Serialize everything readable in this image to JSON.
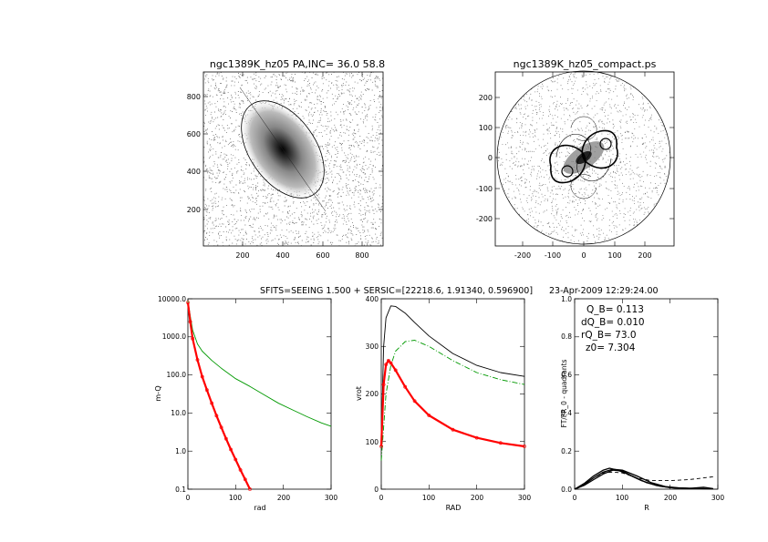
{
  "panels": {
    "image_left": {
      "title": "ngc1389K_hz05 PA,INC= 36.0 58.8",
      "x_ticks": [
        "200",
        "400",
        "600",
        "800"
      ],
      "y_ticks": [
        "200",
        "400",
        "600",
        "800"
      ]
    },
    "image_right": {
      "title": "ngc1389K_hz05_compact.ps",
      "x_ticks": [
        "-200",
        "-100",
        "0",
        "100",
        "200"
      ],
      "y_ticks": [
        "-200",
        "-100",
        "0",
        "100",
        "200"
      ]
    }
  },
  "header": {
    "caption": "SFITS=SEEING 1.500 + SERSIC=[22218.6, 1.91340, 0.596900]",
    "date": "23-Apr-2009 12:29:24.00"
  },
  "chart_data": [
    {
      "type": "line",
      "xlabel": "rad",
      "ylabel": "m-Q",
      "yscale": "log",
      "xlim": [
        0,
        300
      ],
      "ylim": [
        0.1,
        10000
      ],
      "x_ticks": [
        "0",
        "100",
        "200",
        "300"
      ],
      "y_ticks": [
        "0.1",
        "1.0",
        "10.0",
        "100.0",
        "1000.0",
        "10000.0"
      ],
      "series": [
        {
          "color": "#009900",
          "x": [
            0,
            5,
            10,
            20,
            30,
            50,
            70,
            100,
            130,
            160,
            190,
            220,
            250,
            280,
            300
          ],
          "y": [
            9000,
            3500,
            1500,
            650,
            420,
            240,
            150,
            80,
            50,
            30,
            18,
            12,
            8,
            5.5,
            4.5
          ]
        },
        {
          "color": "#ff0000",
          "x": [
            0,
            5,
            10,
            20,
            30,
            40,
            50,
            60,
            70,
            80,
            90,
            100,
            110,
            120,
            130
          ],
          "y": [
            8000,
            2500,
            900,
            250,
            90,
            40,
            18,
            8.5,
            4.2,
            2.1,
            1.1,
            0.6,
            0.32,
            0.18,
            0.1
          ]
        }
      ]
    },
    {
      "type": "line",
      "xlabel": "RAD",
      "ylabel": "vrot",
      "xlim": [
        0,
        300
      ],
      "ylim": [
        0,
        400
      ],
      "x_ticks": [
        "0",
        "100",
        "200",
        "300"
      ],
      "y_ticks": [
        "0",
        "100",
        "200",
        "300",
        "400"
      ],
      "series": [
        {
          "color": "#000000",
          "x": [
            0,
            5,
            10,
            20,
            30,
            50,
            70,
            100,
            150,
            200,
            250,
            300
          ],
          "y": [
            100,
            300,
            360,
            385,
            384,
            370,
            350,
            322,
            285,
            260,
            245,
            237
          ]
        },
        {
          "color": "#009900",
          "x": [
            0,
            10,
            20,
            30,
            50,
            70,
            100,
            150,
            200,
            250,
            300
          ],
          "y": [
            60,
            200,
            260,
            290,
            310,
            313,
            300,
            270,
            245,
            230,
            220
          ]
        },
        {
          "color": "#ff0000",
          "x": [
            0,
            5,
            10,
            15,
            20,
            30,
            50,
            70,
            100,
            150,
            200,
            250,
            300
          ],
          "y": [
            90,
            220,
            262,
            270,
            265,
            250,
            215,
            185,
            155,
            125,
            108,
            97,
            90
          ]
        }
      ]
    },
    {
      "type": "line",
      "xlabel": "R",
      "ylabel": "FT/FR_0 - quadrants",
      "xlim": [
        0,
        300
      ],
      "ylim": [
        0,
        1.0
      ],
      "x_ticks": [
        "0",
        "100",
        "200",
        "300"
      ],
      "y_ticks": [
        "0.0",
        "0.2",
        "0.4",
        "0.6",
        "0.8",
        "1.0"
      ],
      "annotations": [
        "Q_B=  0.113",
        "dQ_B=  0.010",
        "rQ_B=  73.0",
        "z0=  7.304"
      ],
      "series": [
        {
          "color": "#000000",
          "x": [
            0,
            20,
            40,
            60,
            73,
            90,
            110,
            140,
            170,
            200,
            240,
            270,
            290
          ],
          "y": [
            0.0,
            0.03,
            0.07,
            0.1,
            0.11,
            0.1,
            0.08,
            0.045,
            0.02,
            0.008,
            0.004,
            0.01,
            0.003
          ]
        },
        {
          "color": "#000000",
          "x": [
            0,
            20,
            40,
            60,
            80,
            100,
            120,
            150,
            180,
            210,
            250,
            290
          ],
          "y": [
            0.0,
            0.02,
            0.05,
            0.08,
            0.1,
            0.095,
            0.07,
            0.035,
            0.015,
            0.006,
            0.004,
            0.002
          ]
        },
        {
          "color": "#000000",
          "x": [
            0,
            20,
            40,
            60,
            80,
            100,
            130,
            160,
            190,
            220,
            260,
            290
          ],
          "y": [
            0.0,
            0.025,
            0.06,
            0.09,
            0.105,
            0.1,
            0.07,
            0.035,
            0.014,
            0.006,
            0.003,
            0.002
          ]
        },
        {
          "color": "#000000",
          "dash": true,
          "x": [
            0,
            20,
            40,
            60,
            80,
            100,
            130,
            160,
            200,
            240,
            290
          ],
          "y": [
            0.0,
            0.025,
            0.06,
            0.085,
            0.09,
            0.085,
            0.06,
            0.045,
            0.045,
            0.05,
            0.065
          ]
        }
      ]
    }
  ]
}
